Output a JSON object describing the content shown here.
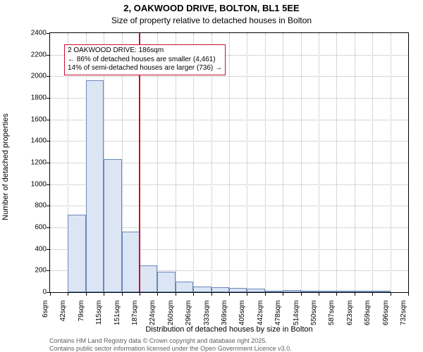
{
  "chart": {
    "type": "histogram",
    "title": "2, OAKWOOD DRIVE, BOLTON, BL1 5EE",
    "subtitle": "Size of property relative to detached houses in Bolton",
    "xlabel": "Distribution of detached houses by size in Bolton",
    "ylabel": "Number of detached properties",
    "background_color": "#ffffff",
    "grid_color": "#b0b0b0",
    "bar_fill": "#dbe5f4",
    "bar_border": "#6b88b8",
    "refline_color": "#c8102e",
    "annotation_border": "#c8102e",
    "title_fontsize": 13,
    "subtitle_fontsize": 12,
    "label_fontsize": 11,
    "tick_fontsize": 10,
    "ylim": [
      0,
      2400
    ],
    "ytick_step": 200,
    "x_tick_labels": [
      "6sqm",
      "42sqm",
      "79sqm",
      "115sqm",
      "151sqm",
      "187sqm",
      "224sqm",
      "260sqm",
      "296sqm",
      "333sqm",
      "369sqm",
      "405sqm",
      "442sqm",
      "478sqm",
      "514sqm",
      "550sqm",
      "587sqm",
      "623sqm",
      "659sqm",
      "696sqm",
      "732sqm"
    ],
    "values": [
      0,
      720,
      1960,
      1230,
      560,
      250,
      190,
      100,
      55,
      45,
      40,
      30,
      15,
      20,
      10,
      5,
      5,
      5,
      5,
      0,
      0
    ],
    "reference_value_sqm": 186,
    "annotation": {
      "line1": "2 OAKWOOD DRIVE: 186sqm",
      "line2": "← 86% of detached houses are smaller (4,461)",
      "line3": "14% of semi-detached houses are larger (736) →"
    },
    "footer1": "Contains HM Land Registry data © Crown copyright and database right 2025.",
    "footer2": "Contains public sector information licensed under the Open Government Licence v3.0."
  }
}
